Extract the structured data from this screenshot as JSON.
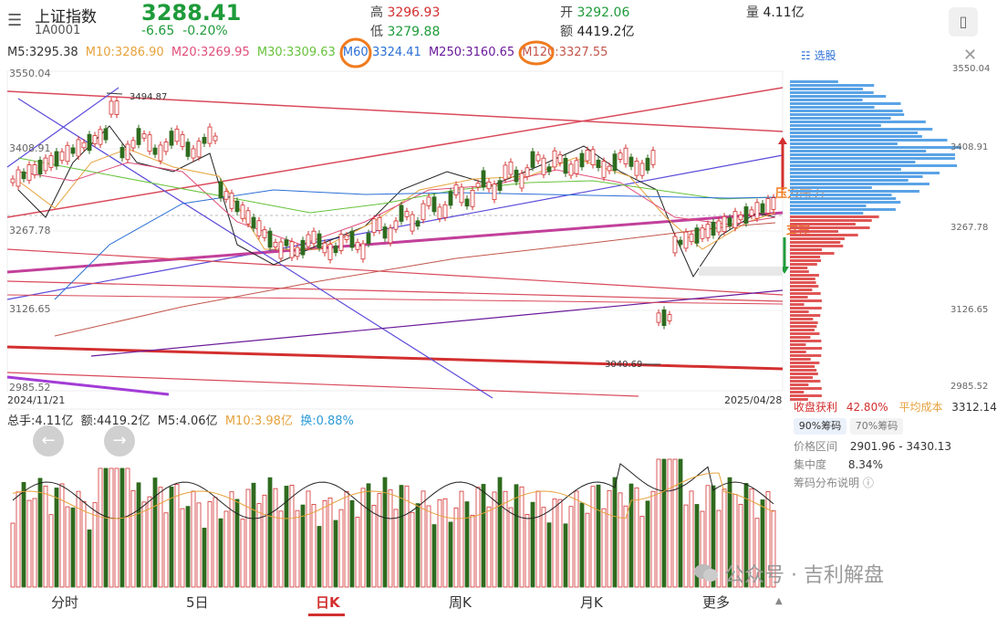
{
  "header": {
    "menu_icon": "menu-icon",
    "index_name": "上证指数",
    "index_code": "1A0001",
    "price": "3288.41",
    "change": "-6.65",
    "change_pct": "-0.20%",
    "high_label": "高",
    "high_value": "3296.93",
    "low_label": "低",
    "low_value": "3279.88",
    "open_label": "开",
    "open_value": "3292.06",
    "amount_label": "额",
    "amount_value": "4419.2亿",
    "volume_label": "量",
    "volume_value": "4.11亿",
    "phone_icon": "phone-icon"
  },
  "ma_row": [
    {
      "text": "M5:3295.38",
      "color": "#333333"
    },
    {
      "text": "M10:3286.90",
      "color": "#e6a23c"
    },
    {
      "text": "M20:3269.95",
      "color": "#e04f7a"
    },
    {
      "text": "M30:3309.63",
      "color": "#67c23a"
    },
    {
      "text": "M60:3324.41",
      "color": "#2b6fd6"
    },
    {
      "text": "M250:3160.65",
      "color": "#6a1b9a"
    },
    {
      "text": "M120:3327.55",
      "color": "#c2554a"
    }
  ],
  "price_axis": {
    "top": "3550.04",
    "mid1": "3408.91",
    "mid2": "3267.78",
    "mid3": "3126.65",
    "bottom": "2985.52"
  },
  "annotations": {
    "high_mark": "3494.87",
    "low_mark": "3040.69",
    "handwritten_1": "压力",
    "handwritten_2": "支撑"
  },
  "dates": {
    "start": "2024/11/21",
    "end": "2025/04/28"
  },
  "volume_row": [
    {
      "text": "总手:4.11亿",
      "color": "#333333"
    },
    {
      "text": "额:4419.2亿",
      "color": "#333333"
    },
    {
      "text": "M5:4.06亿",
      "color": "#333333"
    },
    {
      "text": "M10:3.98亿",
      "color": "#e6a23c"
    },
    {
      "text": "换:0.88%",
      "color": "#2b9bd6"
    }
  ],
  "right_panel": {
    "select_label": "选股",
    "close_icon": "close-icon",
    "axis_top": "3550.04",
    "axis_mid1": "3408.91",
    "axis_mid2": "3267.78",
    "axis_mid3": "3126.65",
    "axis_bottom": "2985.52",
    "profit_label": "收盘获利",
    "profit_value": "42.80%",
    "avg_cost_label": "平均成本",
    "avg_cost_value": "3312.14",
    "tab_90": "90%筹码",
    "tab_70": "70%筹码",
    "range_label": "价格区间",
    "range_value": "2901.96 - 3430.13",
    "concentration_label": "集中度",
    "concentration_value": "8.34%",
    "explain_label": "筹码分布说明"
  },
  "bottom_nav": {
    "items": [
      "分时",
      "5日",
      "日K",
      "周K",
      "月K",
      "更多"
    ],
    "active": "日K"
  },
  "watermark": "公众号 · 吉利解盘",
  "colors": {
    "up": "#d32f2f",
    "down": "#2e6b1e",
    "accent_blue": "#2b6fd6"
  }
}
